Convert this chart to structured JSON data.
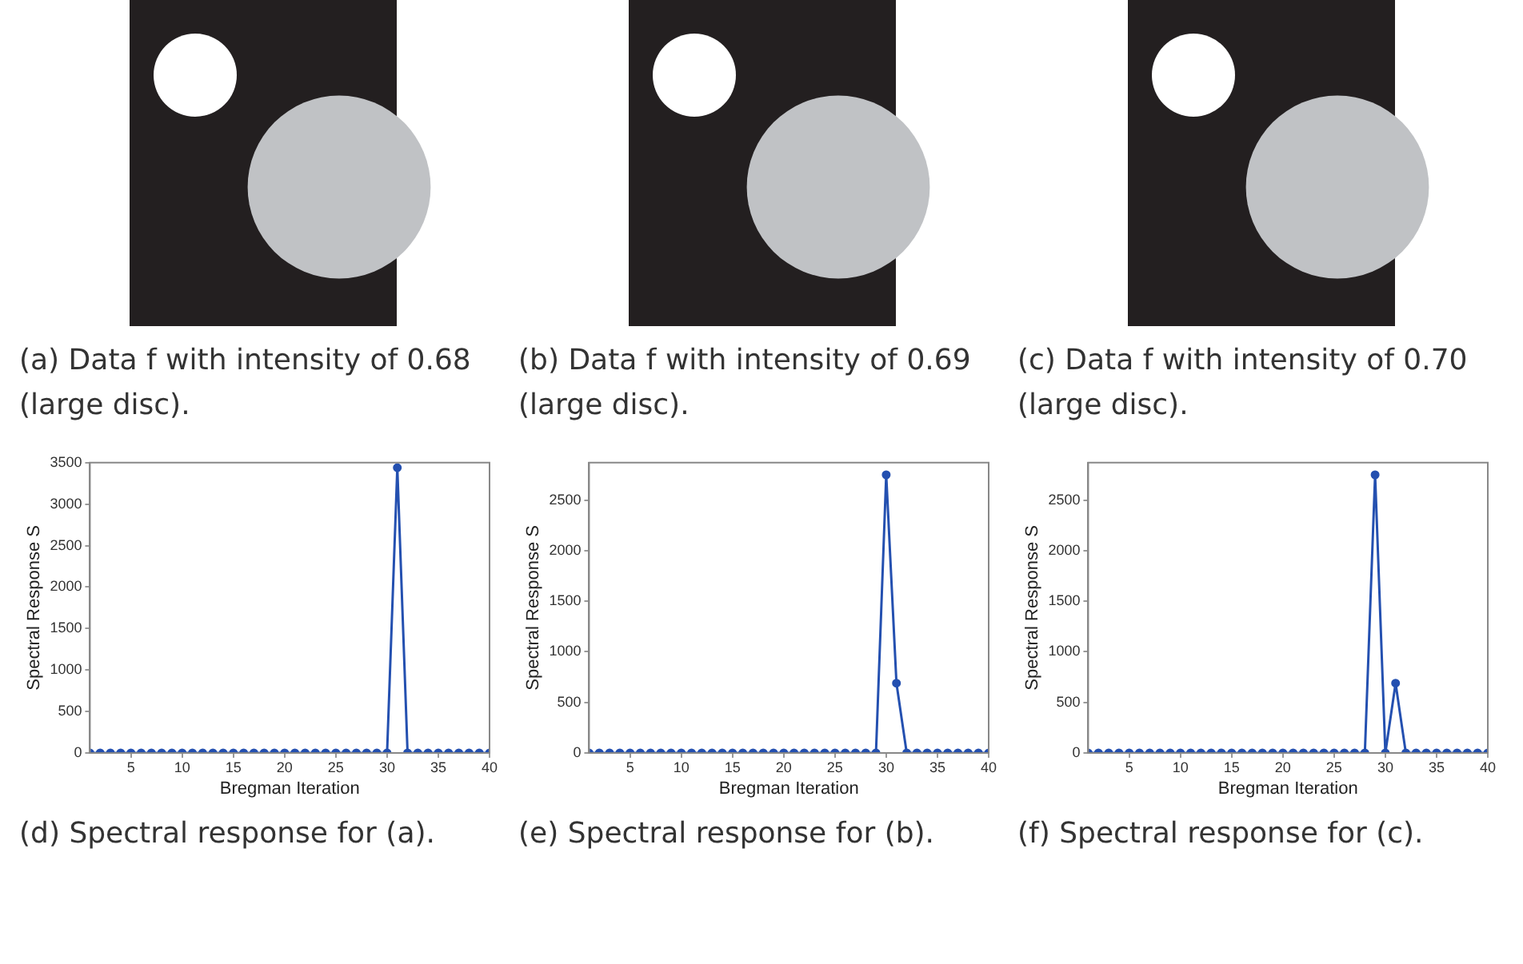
{
  "chart_data": [
    {
      "type": "other",
      "annotations": [
        "(a) Data f with intensity of 0.68 (large disc)."
      ]
    },
    {
      "type": "other",
      "annotations": [
        "(b) Data f with intensity of 0.69 (large disc)."
      ]
    },
    {
      "type": "other",
      "annotations": [
        "(c) Data f with intensity of 0.70 (large disc)."
      ]
    },
    {
      "type": "line",
      "xlabel": "Bregman Iteration",
      "ylabel": "Spectral Response S",
      "annotations": [
        "(d) Spectral response for (a)."
      ],
      "marker": "circle",
      "xlim": [
        1,
        40
      ],
      "xticks": [
        5,
        10,
        15,
        20,
        25,
        30,
        35,
        40
      ],
      "ylim": [
        0,
        3500
      ],
      "yticks": [
        0,
        500,
        1000,
        1500,
        2000,
        2500,
        3000,
        3500
      ],
      "x": [
        1,
        2,
        3,
        4,
        5,
        6,
        7,
        8,
        9,
        10,
        11,
        12,
        13,
        14,
        15,
        16,
        17,
        18,
        19,
        20,
        21,
        22,
        23,
        24,
        25,
        26,
        27,
        28,
        29,
        30,
        31,
        32,
        33,
        34,
        35,
        36,
        37,
        38,
        39,
        40
      ],
      "series": [
        {
          "color": "#2450b0",
          "values": [
            0,
            0,
            0,
            0,
            0,
            0,
            0,
            0,
            0,
            0,
            0,
            0,
            0,
            0,
            0,
            0,
            0,
            0,
            0,
            0,
            0,
            0,
            0,
            0,
            0,
            0,
            0,
            0,
            0,
            0,
            3440,
            0,
            0,
            0,
            0,
            0,
            0,
            0,
            0,
            0
          ]
        }
      ]
    },
    {
      "type": "line",
      "xlabel": "Bregman Iteration",
      "ylabel": "Spectral Response S",
      "annotations": [
        "(e) Spectral response for (b)."
      ],
      "marker": "circle",
      "xlim": [
        1,
        40
      ],
      "xticks": [
        5,
        10,
        15,
        20,
        25,
        30,
        35,
        40
      ],
      "ylim": [
        0,
        2870
      ],
      "yticks": [
        0,
        500,
        1000,
        1500,
        2000,
        2500
      ],
      "x": [
        1,
        2,
        3,
        4,
        5,
        6,
        7,
        8,
        9,
        10,
        11,
        12,
        13,
        14,
        15,
        16,
        17,
        18,
        19,
        20,
        21,
        22,
        23,
        24,
        25,
        26,
        27,
        28,
        29,
        30,
        31,
        32,
        33,
        34,
        35,
        36,
        37,
        38,
        39,
        40
      ],
      "series": [
        {
          "color": "#2450b0",
          "values": [
            0,
            0,
            0,
            0,
            0,
            0,
            0,
            0,
            0,
            0,
            0,
            0,
            0,
            0,
            0,
            0,
            0,
            0,
            0,
            0,
            0,
            0,
            0,
            0,
            0,
            0,
            0,
            0,
            0,
            2750,
            690,
            0,
            0,
            0,
            0,
            0,
            0,
            0,
            0,
            0
          ]
        }
      ]
    },
    {
      "type": "line",
      "xlabel": "Bregman Iteration",
      "ylabel": "Spectral Response S",
      "annotations": [
        "(f) Spectral response for (c)."
      ],
      "marker": "circle",
      "xlim": [
        1,
        40
      ],
      "xticks": [
        5,
        10,
        15,
        20,
        25,
        30,
        35,
        40
      ],
      "ylim": [
        0,
        2870
      ],
      "yticks": [
        0,
        500,
        1000,
        1500,
        2000,
        2500
      ],
      "x": [
        1,
        2,
        3,
        4,
        5,
        6,
        7,
        8,
        9,
        10,
        11,
        12,
        13,
        14,
        15,
        16,
        17,
        18,
        19,
        20,
        21,
        22,
        23,
        24,
        25,
        26,
        27,
        28,
        29,
        30,
        31,
        32,
        33,
        34,
        35,
        36,
        37,
        38,
        39,
        40
      ],
      "series": [
        {
          "color": "#2450b0",
          "values": [
            0,
            0,
            0,
            0,
            0,
            0,
            0,
            0,
            0,
            0,
            0,
            0,
            0,
            0,
            0,
            0,
            0,
            0,
            0,
            0,
            0,
            0,
            0,
            0,
            0,
            0,
            0,
            0,
            2750,
            0,
            690,
            0,
            0,
            0,
            0,
            0,
            0,
            0,
            0,
            0
          ]
        }
      ]
    }
  ]
}
